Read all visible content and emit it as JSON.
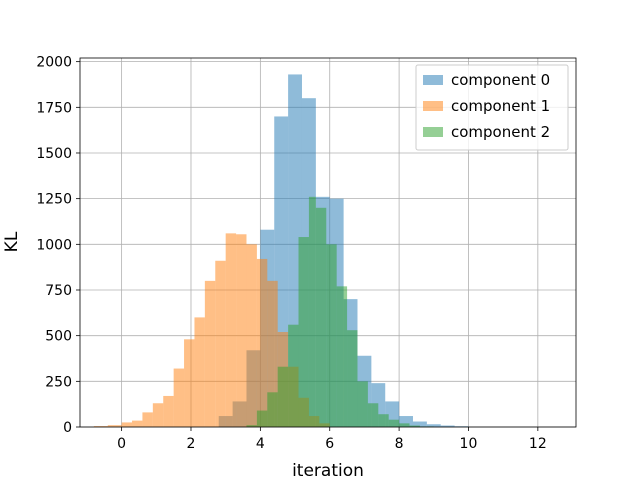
{
  "chart_data": {
    "type": "bar",
    "title": "",
    "xlabel": "iteration",
    "ylabel": "KL",
    "xlim": [
      -1.2,
      13.1
    ],
    "ylim": [
      0,
      2020
    ],
    "grid": true,
    "legend_position": "top-right",
    "x_ticks": [
      0,
      2,
      4,
      6,
      8,
      10,
      12
    ],
    "y_ticks": [
      0,
      250,
      500,
      750,
      1000,
      1250,
      1500,
      1750,
      2000
    ],
    "series": [
      {
        "name": "component 0",
        "color": "#1f77b4",
        "opacity": 0.5,
        "bin_edges": [
          2.8,
          3.2,
          3.6,
          4.0,
          4.4,
          4.8,
          5.2,
          5.6,
          6.0,
          6.4,
          6.8,
          7.2,
          7.6,
          8.0,
          8.4,
          8.8,
          9.2,
          9.6,
          10.0
        ],
        "values": [
          60,
          140,
          420,
          1080,
          1700,
          1930,
          1800,
          1260,
          1250,
          700,
          390,
          240,
          140,
          60,
          30,
          15,
          8,
          4
        ]
      },
      {
        "name": "component 1",
        "color": "#ff7f0e",
        "opacity": 0.5,
        "bin_edges": [
          -0.8,
          -0.4,
          0.0,
          0.3,
          0.6,
          0.9,
          1.2,
          1.5,
          1.8,
          2.1,
          2.4,
          2.7,
          3.0,
          3.3,
          3.6,
          3.9,
          4.2,
          4.5,
          4.8,
          5.1,
          5.4,
          5.7,
          6.0
        ],
        "values": [
          5,
          10,
          25,
          35,
          80,
          130,
          170,
          320,
          480,
          600,
          800,
          910,
          1060,
          1055,
          1000,
          920,
          800,
          520,
          330,
          160,
          60,
          20
        ]
      },
      {
        "name": "component 2",
        "color": "#2ca02c",
        "opacity": 0.5,
        "bin_edges": [
          3.6,
          3.9,
          4.2,
          4.5,
          4.8,
          5.1,
          5.4,
          5.6,
          5.9,
          6.2,
          6.5,
          6.8,
          7.1,
          7.4,
          7.7,
          8.0,
          8.3,
          8.6,
          9.0
        ],
        "values": [
          10,
          90,
          190,
          330,
          560,
          1040,
          1260,
          1200,
          1000,
          770,
          530,
          250,
          130,
          70,
          40,
          20,
          8,
          3
        ]
      }
    ]
  }
}
